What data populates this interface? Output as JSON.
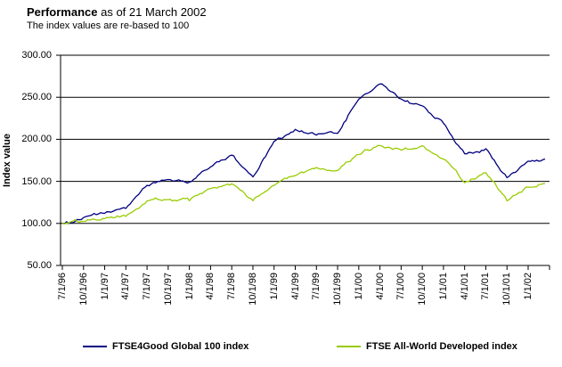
{
  "header": {
    "title": "Performance",
    "title_suffix": " as of 21 March 2002",
    "subtitle": "The index values are re-based to 100"
  },
  "chart_data": {
    "type": "line",
    "title": "Performance as of 21 March 2002",
    "subtitle": "The index values are re-based to 100",
    "xlabel": "",
    "ylabel": "Index value",
    "ylim": [
      50,
      300
    ],
    "ytick_labels": [
      "50.00",
      "100.00",
      "150.00",
      "200.00",
      "250.00",
      "300.00"
    ],
    "grid": true,
    "legend_position": "bottom",
    "categories": [
      "7/1/96",
      "10/1/96",
      "1/1/97",
      "4/1/97",
      "7/1/97",
      "10/1/97",
      "1/1/98",
      "4/1/98",
      "7/1/98",
      "10/1/98",
      "1/1/99",
      "4/1/99",
      "7/1/99",
      "10/1/99",
      "1/1/00",
      "4/1/00",
      "7/1/00",
      "10/1/00",
      "1/1/01",
      "4/1/01",
      "7/1/01",
      "10/1/01",
      "1/1/02"
    ],
    "end_date": "3/21/02",
    "series": [
      {
        "name": "FTSE4Good Global 100 index",
        "color": "#000080",
        "values": [
          100,
          106,
          112,
          118,
          146,
          152,
          149,
          167,
          182,
          155,
          198,
          212,
          205,
          207,
          248,
          265,
          248,
          239,
          219,
          182,
          188,
          153,
          174
        ],
        "end_value": 178
      },
      {
        "name": "FTSE All-World Developed index",
        "color": "#99CC00",
        "values": [
          100,
          103,
          105,
          108,
          126,
          129,
          127,
          141,
          146,
          126,
          144,
          157,
          167,
          163,
          182,
          193,
          187,
          193,
          177,
          149,
          160,
          127,
          143
        ],
        "end_value": 147
      }
    ]
  }
}
